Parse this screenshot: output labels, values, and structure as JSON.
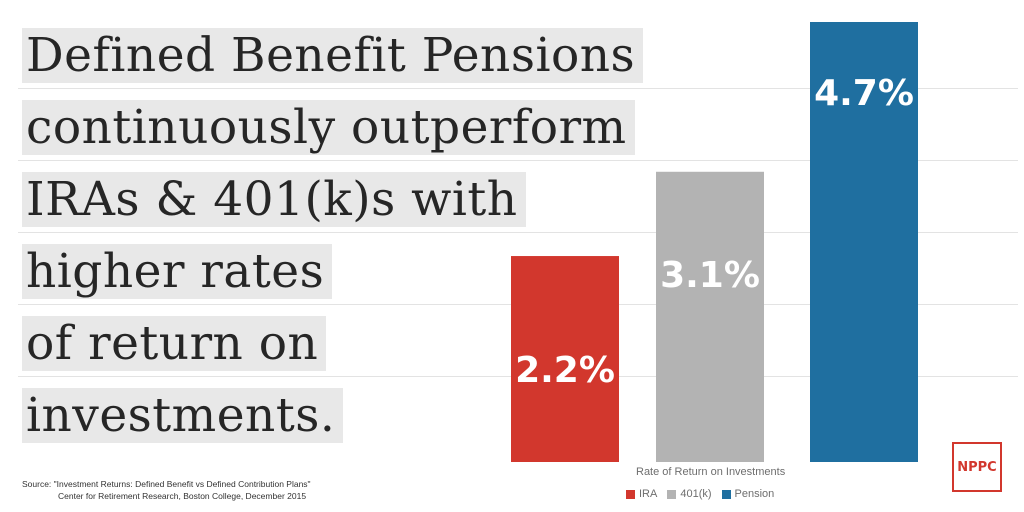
{
  "headline": {
    "lines": [
      "Defined Benefit Pensions",
      "continuously outperform",
      "IRAs & 401(k)s with",
      "higher rates",
      "of return on",
      "investments."
    ]
  },
  "chart_data": {
    "type": "bar",
    "title": "Rate of Return on Investments",
    "categories": [
      "IRA",
      "401(k)",
      "Pension"
    ],
    "values": [
      2.2,
      3.1,
      4.7
    ],
    "value_labels": [
      "2.2%",
      "3.1%",
      "4.7%"
    ],
    "colors": [
      "#d2372d",
      "#b3b3b3",
      "#1f6fa0"
    ],
    "ylim": [
      0,
      4.7
    ],
    "grid": true,
    "legend_position": "bottom"
  },
  "legend": [
    {
      "label": "IRA",
      "color": "#d2372d"
    },
    {
      "label": "401(k)",
      "color": "#b3b3b3"
    },
    {
      "label": "Pension",
      "color": "#1f6fa0"
    }
  ],
  "source": {
    "line1": "Source:  \"Investment Returns: Defined Benefit vs Defined Contribution Plans\"",
    "line2": "Center for Retirement Research, Boston College, December 2015"
  },
  "logo": {
    "text": "NPPC",
    "color": "#d2372d"
  }
}
